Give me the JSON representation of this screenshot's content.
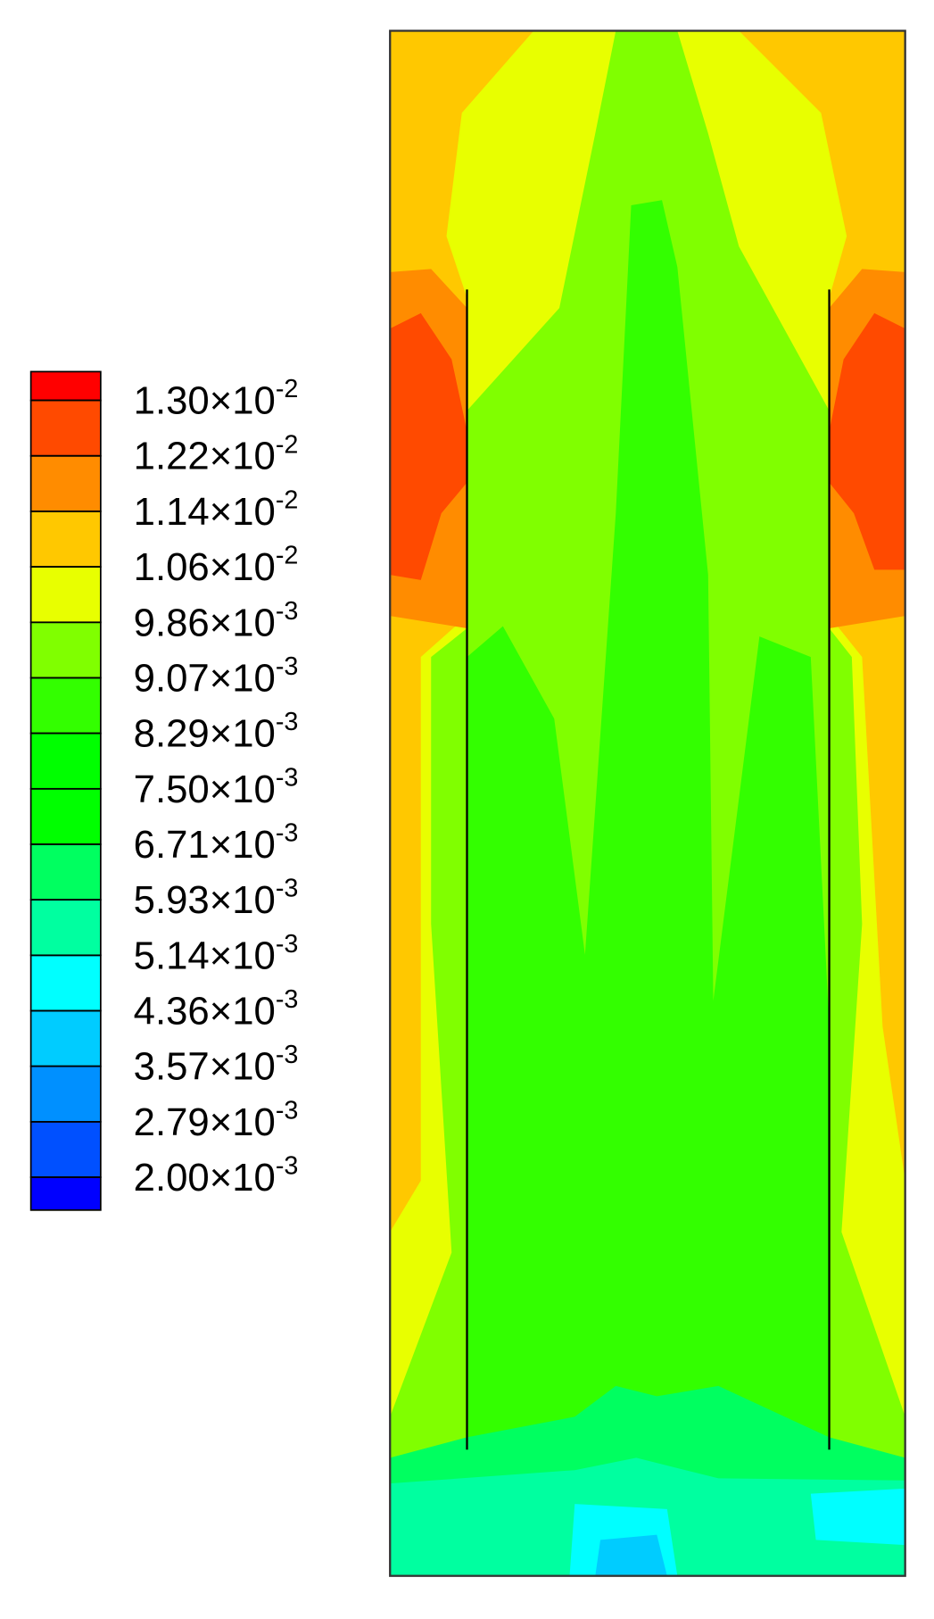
{
  "chart_data": {
    "type": "contour",
    "levels": [
      {
        "value": 0.013,
        "label": "1.30×10",
        "exponent": "-2"
      },
      {
        "value": 0.0122,
        "label": "1.22×10",
        "exponent": "-2"
      },
      {
        "value": 0.0114,
        "label": "1.14×10",
        "exponent": "-2"
      },
      {
        "value": 0.0106,
        "label": "1.06×10",
        "exponent": "-2"
      },
      {
        "value": 0.00986,
        "label": "9.86×10",
        "exponent": "-3"
      },
      {
        "value": 0.00907,
        "label": "9.07×10",
        "exponent": "-3"
      },
      {
        "value": 0.00829,
        "label": "8.29×10",
        "exponent": "-3"
      },
      {
        "value": 0.0075,
        "label": "7.50×10",
        "exponent": "-3"
      },
      {
        "value": 0.00671,
        "label": "6.71×10",
        "exponent": "-3"
      },
      {
        "value": 0.00593,
        "label": "5.93×10",
        "exponent": "-3"
      },
      {
        "value": 0.00514,
        "label": "5.14×10",
        "exponent": "-3"
      },
      {
        "value": 0.00436,
        "label": "4.36×10",
        "exponent": "-3"
      },
      {
        "value": 0.00357,
        "label": "3.57×10",
        "exponent": "-3"
      },
      {
        "value": 0.00279,
        "label": "2.79×10",
        "exponent": "-3"
      },
      {
        "value": 0.002,
        "label": "2.00×10",
        "exponent": "-3"
      }
    ],
    "colors": [
      "#ff0000",
      "#ff4a00",
      "#ff8c00",
      "#ffc800",
      "#e8ff00",
      "#80ff00",
      "#33ff00",
      "#00ff00",
      "#00ff00",
      "#00ff60",
      "#00ffa0",
      "#00ffff",
      "#00ccff",
      "#0090ff",
      "#0050ff",
      "#0000ff"
    ]
  }
}
